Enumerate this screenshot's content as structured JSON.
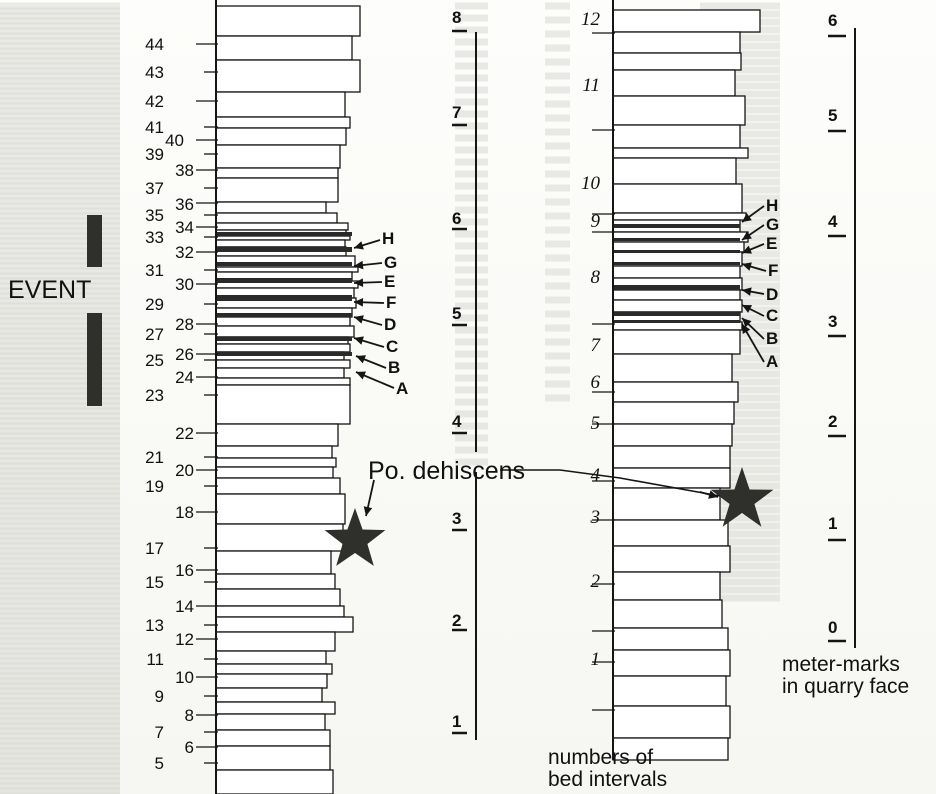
{
  "figure": {
    "event_label": "EVENT",
    "taxon_label": "Po. dehiscens",
    "caption_bed_intervals": [
      "numbers of",
      "bed intervals"
    ],
    "caption_meter_marks": [
      "meter-marks",
      "in quarry face"
    ]
  },
  "left_section": {
    "bed_numbers": [
      "44",
      "43",
      "42",
      "41",
      "40",
      "39",
      "38",
      "37",
      "36",
      "35",
      "34",
      "33",
      "32",
      "31",
      "30",
      "29",
      "28",
      "27",
      "26",
      "25",
      "24",
      "23",
      "22",
      "21",
      "20",
      "19",
      "18",
      "17",
      "16",
      "15",
      "14",
      "13",
      "12",
      "11",
      "10",
      "9",
      "8",
      "7",
      "6",
      "5"
    ],
    "meter_marks": [
      "8",
      "7",
      "6",
      "5",
      "4",
      "3",
      "2",
      "1"
    ],
    "event_letters": [
      "H",
      "G",
      "E",
      "F",
      "D",
      "C",
      "B",
      "A"
    ]
  },
  "right_section": {
    "bed_numbers": [
      "12",
      "11",
      "10",
      "9",
      "8",
      "7",
      "6",
      "5",
      "4",
      "3",
      "2",
      "1"
    ],
    "meter_marks": [
      "6",
      "5",
      "4",
      "3",
      "2",
      "1",
      "0"
    ],
    "event_letters": [
      "H",
      "G",
      "E",
      "F",
      "D",
      "C",
      "B",
      "A"
    ]
  },
  "colors": {
    "ink": "#151515",
    "event_bar": "#2f302c",
    "dark_bed": "#2a2a28"
  }
}
